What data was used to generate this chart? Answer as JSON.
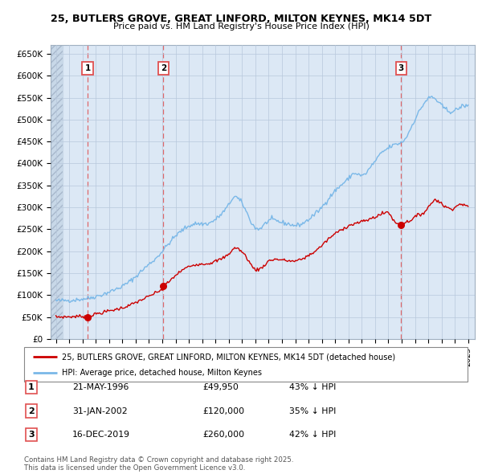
{
  "title": "25, BUTLERS GROVE, GREAT LINFORD, MILTON KEYNES, MK14 5DT",
  "subtitle": "Price paid vs. HM Land Registry's House Price Index (HPI)",
  "ylabel_ticks": [
    "£0",
    "£50K",
    "£100K",
    "£150K",
    "£200K",
    "£250K",
    "£300K",
    "£350K",
    "£400K",
    "£450K",
    "£500K",
    "£550K",
    "£600K",
    "£650K"
  ],
  "ytick_vals": [
    0,
    50000,
    100000,
    150000,
    200000,
    250000,
    300000,
    350000,
    400000,
    450000,
    500000,
    550000,
    600000,
    650000
  ],
  "ylim": [
    0,
    670000
  ],
  "xlim_start": 1993.6,
  "xlim_end": 2025.5,
  "hpi_color": "#7ab8e8",
  "price_color": "#cc0000",
  "purchase_dates": [
    1996.385,
    2002.08,
    2019.96
  ],
  "purchase_prices": [
    49950,
    120000,
    260000
  ],
  "purchase_labels": [
    "1",
    "2",
    "3"
  ],
  "vline_color": "#e05050",
  "background_color": "#dce8f5",
  "hatch_region_end": 1994.5,
  "grid_color": "#b8c8dc",
  "legend_entries": [
    "25, BUTLERS GROVE, GREAT LINFORD, MILTON KEYNES, MK14 5DT (detached house)",
    "HPI: Average price, detached house, Milton Keynes"
  ],
  "table_data": [
    [
      "1",
      "21-MAY-1996",
      "£49,950",
      "43% ↓ HPI"
    ],
    [
      "2",
      "31-JAN-2002",
      "£120,000",
      "35% ↓ HPI"
    ],
    [
      "3",
      "16-DEC-2019",
      "£260,000",
      "42% ↓ HPI"
    ]
  ],
  "footnote": "Contains HM Land Registry data © Crown copyright and database right 2025.\nThis data is licensed under the Open Government Licence v3.0.",
  "xtick_years": [
    1994,
    1995,
    1996,
    1997,
    1998,
    1999,
    2000,
    2001,
    2002,
    2003,
    2004,
    2005,
    2006,
    2007,
    2008,
    2009,
    2010,
    2011,
    2012,
    2013,
    2014,
    2015,
    2016,
    2017,
    2018,
    2019,
    2020,
    2021,
    2022,
    2023,
    2024,
    2025
  ],
  "hpi_anchors": [
    [
      1994.0,
      87000
    ],
    [
      1994.5,
      87500
    ],
    [
      1995.0,
      88000
    ],
    [
      1995.5,
      89000
    ],
    [
      1996.0,
      91000
    ],
    [
      1996.5,
      93000
    ],
    [
      1997.0,
      97000
    ],
    [
      1997.5,
      101000
    ],
    [
      1998.0,
      107000
    ],
    [
      1998.5,
      113000
    ],
    [
      1999.0,
      120000
    ],
    [
      1999.5,
      130000
    ],
    [
      2000.0,
      142000
    ],
    [
      2000.5,
      157000
    ],
    [
      2001.0,
      170000
    ],
    [
      2001.5,
      183000
    ],
    [
      2002.0,
      200000
    ],
    [
      2002.5,
      218000
    ],
    [
      2003.0,
      235000
    ],
    [
      2003.5,
      248000
    ],
    [
      2004.0,
      258000
    ],
    [
      2004.5,
      263000
    ],
    [
      2005.0,
      262000
    ],
    [
      2005.5,
      263000
    ],
    [
      2006.0,
      272000
    ],
    [
      2006.5,
      286000
    ],
    [
      2007.0,
      305000
    ],
    [
      2007.25,
      320000
    ],
    [
      2007.5,
      325000
    ],
    [
      2007.75,
      318000
    ],
    [
      2008.0,
      310000
    ],
    [
      2008.25,
      295000
    ],
    [
      2008.5,
      278000
    ],
    [
      2008.75,
      262000
    ],
    [
      2009.0,
      253000
    ],
    [
      2009.25,
      250000
    ],
    [
      2009.5,
      255000
    ],
    [
      2009.75,
      263000
    ],
    [
      2010.0,
      270000
    ],
    [
      2010.25,
      272000
    ],
    [
      2010.5,
      270000
    ],
    [
      2010.75,
      268000
    ],
    [
      2011.0,
      265000
    ],
    [
      2011.5,
      262000
    ],
    [
      2012.0,
      258000
    ],
    [
      2012.5,
      262000
    ],
    [
      2013.0,
      272000
    ],
    [
      2013.5,
      285000
    ],
    [
      2014.0,
      300000
    ],
    [
      2014.5,
      320000
    ],
    [
      2015.0,
      338000
    ],
    [
      2015.5,
      352000
    ],
    [
      2016.0,
      365000
    ],
    [
      2016.25,
      375000
    ],
    [
      2016.5,
      378000
    ],
    [
      2016.75,
      375000
    ],
    [
      2017.0,
      372000
    ],
    [
      2017.25,
      375000
    ],
    [
      2017.5,
      385000
    ],
    [
      2017.75,
      395000
    ],
    [
      2018.0,
      405000
    ],
    [
      2018.25,
      415000
    ],
    [
      2018.5,
      425000
    ],
    [
      2018.75,
      430000
    ],
    [
      2019.0,
      435000
    ],
    [
      2019.25,
      440000
    ],
    [
      2019.5,
      443000
    ],
    [
      2019.75,
      445000
    ],
    [
      2020.0,
      448000
    ],
    [
      2020.25,
      455000
    ],
    [
      2020.5,
      468000
    ],
    [
      2020.75,
      485000
    ],
    [
      2021.0,
      500000
    ],
    [
      2021.25,
      515000
    ],
    [
      2021.5,
      528000
    ],
    [
      2021.75,
      540000
    ],
    [
      2022.0,
      548000
    ],
    [
      2022.25,
      552000
    ],
    [
      2022.5,
      548000
    ],
    [
      2022.75,
      540000
    ],
    [
      2023.0,
      532000
    ],
    [
      2023.25,
      525000
    ],
    [
      2023.5,
      520000
    ],
    [
      2023.75,
      518000
    ],
    [
      2024.0,
      520000
    ],
    [
      2024.25,
      525000
    ],
    [
      2024.5,
      530000
    ],
    [
      2024.75,
      532000
    ],
    [
      2025.0,
      530000
    ]
  ],
  "price_anchors": [
    [
      1994.0,
      50000
    ],
    [
      1994.5,
      50200
    ],
    [
      1995.0,
      50500
    ],
    [
      1995.5,
      51000
    ],
    [
      1996.0,
      52000
    ],
    [
      1996.385,
      49950
    ],
    [
      1996.5,
      52000
    ],
    [
      1996.75,
      54000
    ],
    [
      1997.0,
      57000
    ],
    [
      1997.5,
      60000
    ],
    [
      1998.0,
      64000
    ],
    [
      1998.5,
      67000
    ],
    [
      1999.0,
      71000
    ],
    [
      1999.5,
      76000
    ],
    [
      2000.0,
      83000
    ],
    [
      2000.5,
      90000
    ],
    [
      2001.0,
      97000
    ],
    [
      2001.5,
      105000
    ],
    [
      2002.0,
      113000
    ],
    [
      2002.08,
      120000
    ],
    [
      2002.5,
      130000
    ],
    [
      2003.0,
      145000
    ],
    [
      2003.5,
      157000
    ],
    [
      2004.0,
      165000
    ],
    [
      2004.5,
      170000
    ],
    [
      2005.0,
      171000
    ],
    [
      2005.5,
      172000
    ],
    [
      2006.0,
      177000
    ],
    [
      2006.5,
      183000
    ],
    [
      2007.0,
      193000
    ],
    [
      2007.25,
      203000
    ],
    [
      2007.5,
      208000
    ],
    [
      2007.75,
      205000
    ],
    [
      2008.0,
      198000
    ],
    [
      2008.25,
      190000
    ],
    [
      2008.5,
      178000
    ],
    [
      2008.75,
      165000
    ],
    [
      2009.0,
      158000
    ],
    [
      2009.25,
      158000
    ],
    [
      2009.5,
      163000
    ],
    [
      2009.75,
      170000
    ],
    [
      2010.0,
      178000
    ],
    [
      2010.5,
      182000
    ],
    [
      2011.0,
      180000
    ],
    [
      2011.5,
      178000
    ],
    [
      2012.0,
      177000
    ],
    [
      2012.5,
      182000
    ],
    [
      2013.0,
      190000
    ],
    [
      2013.5,
      200000
    ],
    [
      2014.0,
      213000
    ],
    [
      2014.5,
      228000
    ],
    [
      2015.0,
      240000
    ],
    [
      2015.5,
      250000
    ],
    [
      2016.0,
      258000
    ],
    [
      2016.5,
      263000
    ],
    [
      2017.0,
      267000
    ],
    [
      2017.5,
      272000
    ],
    [
      2018.0,
      278000
    ],
    [
      2018.5,
      285000
    ],
    [
      2019.0,
      290000
    ],
    [
      2019.5,
      265000
    ],
    [
      2019.96,
      260000
    ],
    [
      2020.0,
      263000
    ],
    [
      2020.25,
      265000
    ],
    [
      2020.5,
      268000
    ],
    [
      2020.75,
      272000
    ],
    [
      2021.0,
      278000
    ],
    [
      2021.25,
      282000
    ],
    [
      2021.5,
      285000
    ],
    [
      2021.75,
      290000
    ],
    [
      2022.0,
      300000
    ],
    [
      2022.25,
      310000
    ],
    [
      2022.5,
      318000
    ],
    [
      2022.75,
      315000
    ],
    [
      2023.0,
      308000
    ],
    [
      2023.25,
      302000
    ],
    [
      2023.5,
      298000
    ],
    [
      2023.75,
      297000
    ],
    [
      2024.0,
      300000
    ],
    [
      2024.25,
      305000
    ],
    [
      2024.5,
      308000
    ],
    [
      2024.75,
      305000
    ],
    [
      2025.0,
      300000
    ]
  ]
}
